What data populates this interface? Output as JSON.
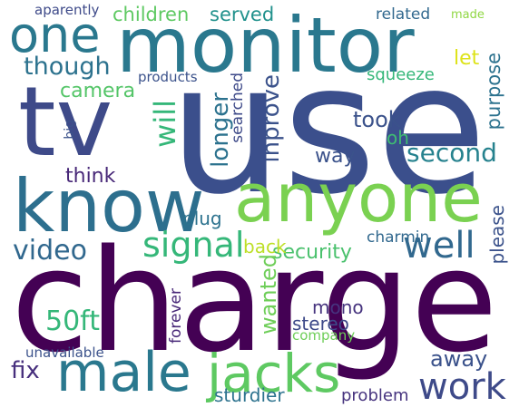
{
  "words": {
    "use": {
      "text": "use",
      "color": "#3b4f8c",
      "vertical": false
    },
    "charge": {
      "text": "charge",
      "color": "#440154",
      "vertical": false
    },
    "monitor": {
      "text": "monitor",
      "color": "#2a788e",
      "vertical": false
    },
    "tv": {
      "text": "tv",
      "color": "#3e4a89",
      "vertical": false
    },
    "know": {
      "text": "know",
      "color": "#2d6f8e",
      "vertical": false
    },
    "anyone": {
      "text": "anyone",
      "color": "#7ad151",
      "vertical": false
    },
    "one": {
      "text": "one",
      "color": "#2a788e",
      "vertical": false
    },
    "male": {
      "text": "male",
      "color": "#2a788e",
      "vertical": false
    },
    "jacks": {
      "text": "jacks",
      "color": "#5ec962",
      "vertical": false
    },
    "work": {
      "text": "work",
      "color": "#3e4a89",
      "vertical": false
    },
    "signal": {
      "text": "signal",
      "color": "#35b779",
      "vertical": false
    },
    "well": {
      "text": "well",
      "color": "#31688e",
      "vertical": false
    },
    "video": {
      "text": "video",
      "color": "#31688e",
      "vertical": false
    },
    "security": {
      "text": "security",
      "color": "#4ac16d",
      "vertical": false
    },
    "though": {
      "text": "though",
      "color": "#2c728e",
      "vertical": false
    },
    "will": {
      "text": "will",
      "color": "#35b779",
      "vertical": true
    },
    "inprove": {
      "text": "inprove",
      "color": "#3b528b",
      "vertical": true
    },
    "longer": {
      "text": "longer",
      "color": "#2c728e",
      "vertical": true
    },
    "took": {
      "text": "took",
      "color": "#3b528b",
      "vertical": false
    },
    "second": {
      "text": "second",
      "color": "#26828e",
      "vertical": false
    },
    "camera": {
      "text": "camera",
      "color": "#54c568",
      "vertical": false
    },
    "let": {
      "text": "let",
      "color": "#dde318",
      "vertical": false
    },
    "way": {
      "text": "way",
      "color": "#3b528b",
      "vertical": false
    },
    "oh": {
      "text": "oh",
      "color": "#3fbc73",
      "vertical": false
    },
    "think": {
      "text": "think",
      "color": "#482878",
      "vertical": false
    },
    "plug": {
      "text": "plug",
      "color": "#2c728e",
      "vertical": false
    },
    "back": {
      "text": "back",
      "color": "#bddf26",
      "vertical": false
    },
    "charmin": {
      "text": "charmin",
      "color": "#31688e",
      "vertical": false
    },
    "please": {
      "text": "please",
      "color": "#3b528b",
      "vertical": true
    },
    "wanted": {
      "text": "wanted",
      "color": "#6ece58",
      "vertical": true
    },
    "forever": {
      "text": "forever",
      "color": "#482878",
      "vertical": true
    },
    "50ft": {
      "text": "50ft",
      "color": "#35b779",
      "vertical": false
    },
    "mono": {
      "text": "mono",
      "color": "#46337e",
      "vertical": false
    },
    "stereo": {
      "text": "stereo",
      "color": "#3e4a89",
      "vertical": false
    },
    "company": {
      "text": "company",
      "color": "#6ece58",
      "vertical": false
    },
    "away": {
      "text": "away",
      "color": "#3b528b",
      "vertical": false
    },
    "fix": {
      "text": "fix",
      "color": "#472f7d",
      "vertical": false
    },
    "sturdier": {
      "text": "sturdier",
      "color": "#2c728e",
      "vertical": false
    },
    "problem": {
      "text": "problem",
      "color": "#46337e",
      "vertical": false
    },
    "unavailable": {
      "text": "unavailable",
      "color": "#3b528b",
      "vertical": false
    },
    "children": {
      "text": "children",
      "color": "#5ec962",
      "vertical": false
    },
    "served": {
      "text": "served",
      "color": "#21918c",
      "vertical": false
    },
    "related": {
      "text": "related",
      "color": "#31688e",
      "vertical": false
    },
    "made": {
      "text": "made",
      "color": "#90d743",
      "vertical": false
    },
    "aparently": {
      "text": "aparently",
      "color": "#3e4a89",
      "vertical": false
    },
    "purpose": {
      "text": "purpose",
      "color": "#2c728e",
      "vertical": true
    },
    "squeeze": {
      "text": "squeeze",
      "color": "#35b779",
      "vertical": false
    },
    "products": {
      "text": "products",
      "color": "#3b528b",
      "vertical": false
    },
    "searched": {
      "text": "searched",
      "color": "#3e4a89",
      "vertical": true
    },
    "big": {
      "text": "big",
      "color": "#3b528b",
      "vertical": true
    }
  }
}
